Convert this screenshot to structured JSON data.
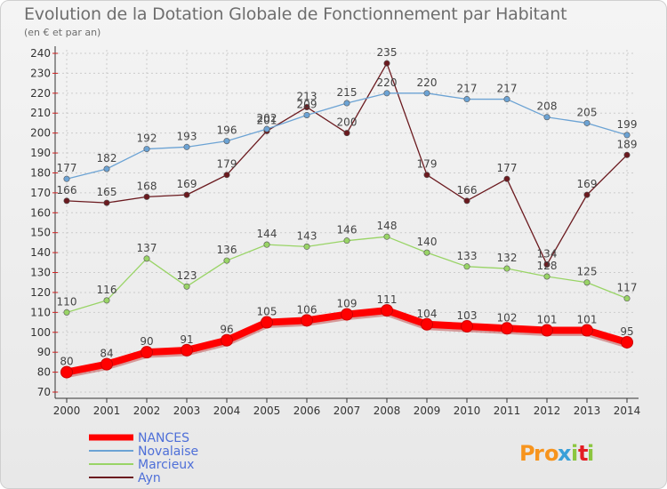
{
  "chart_data": {
    "type": "line",
    "title": "Evolution de la Dotation Globale de Fonctionnement par Habitant",
    "subtitle": "(en € et par an)",
    "x": [
      "2000",
      "2001",
      "2002",
      "2003",
      "2004",
      "2005",
      "2006",
      "2007",
      "2008",
      "2009",
      "2010",
      "2011",
      "2012",
      "2013",
      "2014"
    ],
    "ylim": [
      70,
      240
    ],
    "yticks": [
      70,
      80,
      90,
      100,
      110,
      120,
      130,
      140,
      150,
      160,
      170,
      180,
      190,
      200,
      210,
      220,
      230,
      240
    ],
    "grid": true,
    "legend_position": "bottom-left",
    "series": [
      {
        "name": "NANCES",
        "color": "#ff0000",
        "values": [
          80,
          84,
          90,
          91,
          96,
          105,
          106,
          109,
          111,
          104,
          103,
          102,
          101,
          101,
          95
        ]
      },
      {
        "name": "Novalaise",
        "color": "#6ca3d4",
        "values": [
          177,
          182,
          192,
          193,
          196,
          202,
          209,
          215,
          220,
          220,
          217,
          217,
          208,
          205,
          199
        ]
      },
      {
        "name": "Marcieux",
        "color": "#99d466",
        "values": [
          110,
          116,
          137,
          123,
          136,
          144,
          143,
          146,
          148,
          140,
          133,
          132,
          128,
          125,
          117
        ]
      },
      {
        "name": "Ayn",
        "color": "#6b1a1f",
        "values": [
          166,
          165,
          168,
          169,
          179,
          201,
          213,
          200,
          235,
          179,
          166,
          177,
          134,
          169,
          189
        ]
      }
    ]
  },
  "branding": {
    "logo_text": "Proxiti",
    "logo_colors": [
      "#f7941d",
      "#3aa0d8",
      "#8cc63f",
      "#e31e24"
    ]
  }
}
